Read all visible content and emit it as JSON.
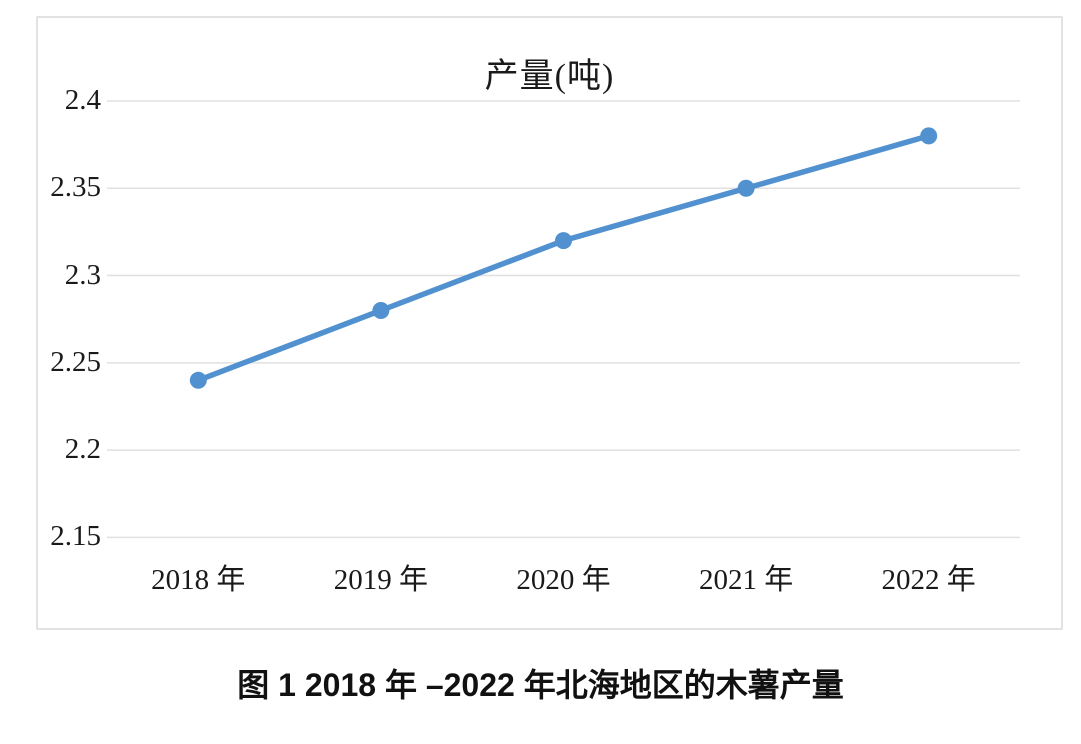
{
  "figure": {
    "caption": "图 1 2018 年 –2022 年北海地区的木薯产量"
  },
  "chart_data": {
    "type": "line",
    "title": "产量(吨)",
    "categories": [
      "2018 年",
      "2019 年",
      "2020 年",
      "2021 年",
      "2022 年"
    ],
    "values": [
      2.24,
      2.28,
      2.32,
      2.35,
      2.38
    ],
    "xlabel": "",
    "ylabel": "",
    "ylim": [
      2.15,
      2.4
    ],
    "ytick_step": 0.05,
    "yticks": [
      "2.15",
      "2.2",
      "2.25",
      "2.3",
      "2.35",
      "2.4"
    ],
    "grid": true,
    "legend": "none",
    "line_color": "#5291cf",
    "marker": "circle",
    "gridline_color": "#e0e0e0",
    "frame_color": "#e2e2e2",
    "text_color": "#1a1a1a"
  }
}
